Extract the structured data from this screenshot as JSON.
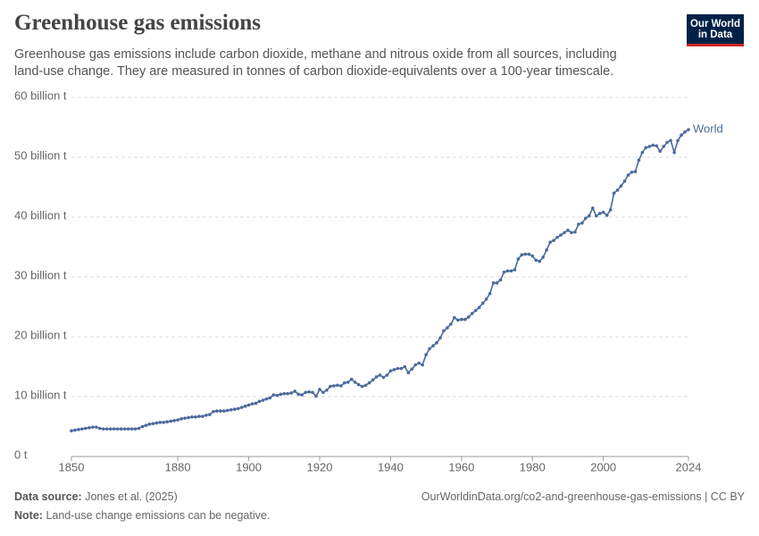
{
  "header": {
    "title": "Greenhouse gas emissions",
    "subtitle": "Greenhouse gas emissions include carbon dioxide, methane and nitrous oxide from all sources, including land-use change. They are measured in tonnes of carbon dioxide-equivalents over a 100-year timescale.",
    "logo": [
      "Our World",
      "in Data"
    ]
  },
  "chart_data": {
    "type": "line",
    "x": [
      1850,
      1851,
      1852,
      1853,
      1854,
      1855,
      1856,
      1857,
      1858,
      1859,
      1860,
      1861,
      1862,
      1863,
      1864,
      1865,
      1866,
      1867,
      1868,
      1869,
      1870,
      1871,
      1872,
      1873,
      1874,
      1875,
      1876,
      1877,
      1878,
      1879,
      1880,
      1881,
      1882,
      1883,
      1884,
      1885,
      1886,
      1887,
      1888,
      1889,
      1890,
      1891,
      1892,
      1893,
      1894,
      1895,
      1896,
      1897,
      1898,
      1899,
      1900,
      1901,
      1902,
      1903,
      1904,
      1905,
      1906,
      1907,
      1908,
      1909,
      1910,
      1911,
      1912,
      1913,
      1914,
      1915,
      1916,
      1917,
      1918,
      1919,
      1920,
      1921,
      1922,
      1923,
      1924,
      1925,
      1926,
      1927,
      1928,
      1929,
      1930,
      1931,
      1932,
      1933,
      1934,
      1935,
      1936,
      1937,
      1938,
      1939,
      1940,
      1941,
      1942,
      1943,
      1944,
      1945,
      1946,
      1947,
      1948,
      1949,
      1950,
      1951,
      1952,
      1953,
      1954,
      1955,
      1956,
      1957,
      1958,
      1959,
      1960,
      1961,
      1962,
      1963,
      1964,
      1965,
      1966,
      1967,
      1968,
      1969,
      1970,
      1971,
      1972,
      1973,
      1974,
      1975,
      1976,
      1977,
      1978,
      1979,
      1980,
      1981,
      1982,
      1983,
      1984,
      1985,
      1986,
      1987,
      1988,
      1989,
      1990,
      1991,
      1992,
      1993,
      1994,
      1995,
      1996,
      1997,
      1998,
      1999,
      2000,
      2001,
      2002,
      2003,
      2004,
      2005,
      2006,
      2007,
      2008,
      2009,
      2010,
      2011,
      2012,
      2013,
      2014,
      2015,
      2016,
      2017,
      2018,
      2019,
      2020,
      2021,
      2022,
      2023,
      2024
    ],
    "series": [
      {
        "name": "World",
        "color": "#4c6a9c",
        "values": [
          4.3,
          4.4,
          4.5,
          4.6,
          4.7,
          4.8,
          4.9,
          4.9,
          4.7,
          4.6,
          4.6,
          4.6,
          4.6,
          4.6,
          4.6,
          4.6,
          4.6,
          4.6,
          4.6,
          4.7,
          5.0,
          5.2,
          5.4,
          5.5,
          5.6,
          5.7,
          5.7,
          5.8,
          5.9,
          6.0,
          6.1,
          6.3,
          6.4,
          6.5,
          6.6,
          6.6,
          6.7,
          6.7,
          6.9,
          7.0,
          7.5,
          7.6,
          7.6,
          7.6,
          7.7,
          7.8,
          7.9,
          8.0,
          8.2,
          8.4,
          8.6,
          8.8,
          8.9,
          9.2,
          9.4,
          9.6,
          9.8,
          10.3,
          10.2,
          10.4,
          10.5,
          10.5,
          10.6,
          10.9,
          10.4,
          10.3,
          10.7,
          10.8,
          10.7,
          10.1,
          11.2,
          10.7,
          11.1,
          11.7,
          11.8,
          11.9,
          11.8,
          12.3,
          12.4,
          12.9,
          12.4,
          12.0,
          11.7,
          11.9,
          12.3,
          12.8,
          13.3,
          13.6,
          13.2,
          13.6,
          14.3,
          14.5,
          14.7,
          14.7,
          15.0,
          14.0,
          14.6,
          15.3,
          15.6,
          15.3,
          17.0,
          18.0,
          18.5,
          19.0,
          19.8,
          21.0,
          21.5,
          22.1,
          23.2,
          22.8,
          22.9,
          22.9,
          23.3,
          23.9,
          24.4,
          24.9,
          25.6,
          26.3,
          27.2,
          29.0,
          29.0,
          29.5,
          30.8,
          31.0,
          31.0,
          31.2,
          33.0,
          33.7,
          33.8,
          33.8,
          33.5,
          32.8,
          32.6,
          33.3,
          34.5,
          35.8,
          36.1,
          36.6,
          37.0,
          37.4,
          37.8,
          37.4,
          37.5,
          38.8,
          39.0,
          39.8,
          40.2,
          41.5,
          40.2,
          40.6,
          40.8,
          40.3,
          41.2,
          44.0,
          44.5,
          45.2,
          46.0,
          47.0,
          47.5,
          47.6,
          49.5,
          50.8,
          51.6,
          51.8,
          52.0,
          51.9,
          51.0,
          51.8,
          52.5,
          52.8,
          50.8,
          52.8,
          53.7,
          54.2,
          54.6
        ]
      }
    ],
    "xlim": [
      1850,
      2024
    ],
    "xticks": [
      1850,
      1880,
      1900,
      1920,
      1940,
      1960,
      1980,
      2000,
      2024
    ],
    "ylim": [
      0,
      60
    ],
    "yticks": [
      {
        "value": 0,
        "label": "0 t"
      },
      {
        "value": 10,
        "label": "10 billion t"
      },
      {
        "value": 20,
        "label": "20 billion t"
      },
      {
        "value": 30,
        "label": "30 billion t"
      },
      {
        "value": 40,
        "label": "40 billion t"
      },
      {
        "value": 50,
        "label": "50 billion t"
      },
      {
        "value": 60,
        "label": "60 billion t"
      }
    ],
    "grid": true
  },
  "footer": {
    "source_label": "Data source:",
    "source": "Jones et al. (2025)",
    "url": "OurWorldinData.org/co2-and-greenhouse-gas-emissions | CC BY",
    "note_label": "Note:",
    "note": "Land-use change emissions can be negative."
  }
}
